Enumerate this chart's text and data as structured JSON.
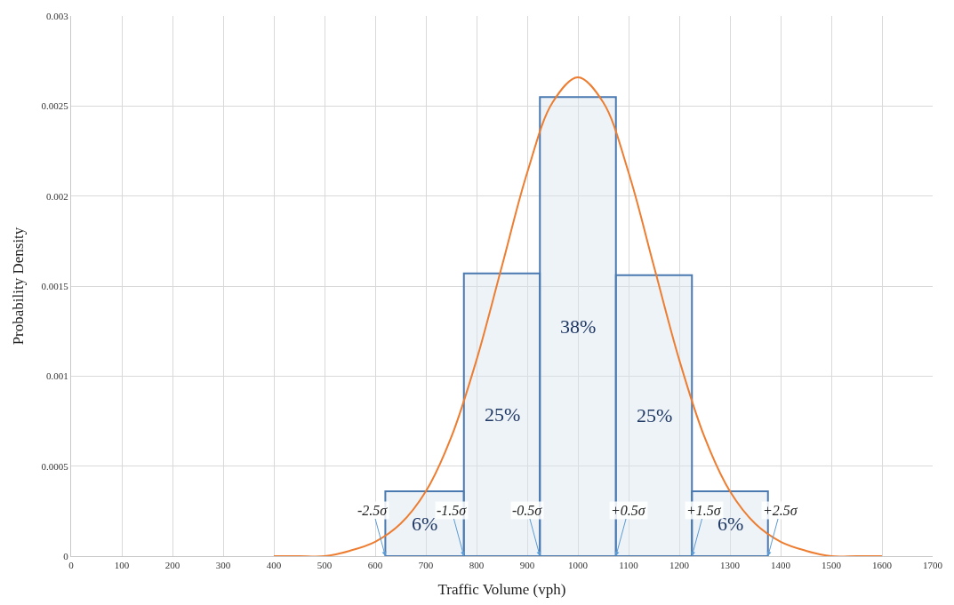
{
  "chart_data": {
    "type": "histogram",
    "xlabel": "Traffic Volume (vph)",
    "ylabel": "Probability Density",
    "xlim": [
      0,
      1700
    ],
    "xticks": [
      0,
      100,
      200,
      300,
      400,
      500,
      600,
      700,
      800,
      900,
      1000,
      1100,
      1200,
      1300,
      1400,
      1500,
      1600,
      1700
    ],
    "ylim": [
      0,
      0.003
    ],
    "yticks": [
      0,
      0.0005,
      0.001,
      0.0015,
      0.002,
      0.0025,
      0.003
    ],
    "grid": true,
    "series": [
      {
        "color": "#4a7ab0",
        "bins": [
          620,
          775,
          925,
          1075,
          1225,
          1375
        ],
        "values": [
          0.00036,
          0.00157,
          0.00255,
          0.00156,
          0.00036
        ]
      },
      {
        "type": "line",
        "color": "#ed7d31",
        "x": [
          400,
          450,
          500,
          550,
          600,
          650,
          700,
          750,
          800,
          850,
          900,
          950,
          1000,
          1050,
          1100,
          1150,
          1200,
          1250,
          1300,
          1350,
          1400,
          1450,
          1500,
          1550,
          1600
        ],
        "values": [
          0,
          0,
          0,
          3e-05,
          8e-05,
          0.00018,
          0.00036,
          0.00066,
          0.00109,
          0.00161,
          0.00213,
          0.00252,
          0.00266,
          0.00252,
          0.00213,
          0.00161,
          0.00109,
          0.00066,
          0.00036,
          0.00018,
          8e-05,
          3e-05,
          0,
          0,
          0
        ]
      }
    ],
    "annotations": [
      "6%",
      "25%",
      "38%",
      "25%",
      "6%",
      {
        "text": "-2.5σ",
        "x": 620,
        "y": 0
      },
      {
        "text": "-1.5σ",
        "x": 775,
        "y": 0
      },
      {
        "text": "-0.5σ",
        "x": 925,
        "y": 0
      },
      {
        "text": "+0.5σ",
        "x": 1075,
        "y": 0
      },
      {
        "text": "+1.5σ",
        "x": 1225,
        "y": 0
      },
      {
        "text": "+2.5σ",
        "x": 1375,
        "y": 0
      }
    ]
  }
}
